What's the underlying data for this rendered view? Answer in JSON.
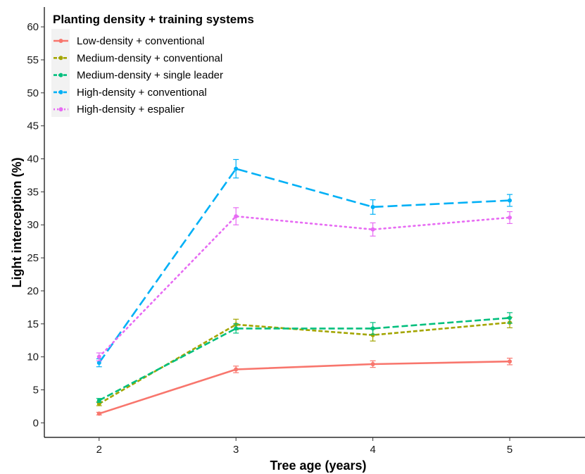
{
  "chart_data": {
    "type": "line",
    "xlabel": "Tree age (years)",
    "ylabel": "Light interception (%)",
    "x": [
      2,
      3,
      4,
      5
    ],
    "xlim": [
      1.6,
      5.55
    ],
    "ylim": [
      -2.2,
      63
    ],
    "yticks": [
      0,
      5,
      10,
      15,
      20,
      25,
      30,
      35,
      40,
      45,
      50,
      55,
      60
    ],
    "grid": false,
    "error_bars": true,
    "legend": {
      "title": "Planting density + training systems",
      "position": "top-left"
    },
    "series": [
      {
        "name": "Low-density + conventional",
        "color": "#F8766D",
        "dash": "solid",
        "values": [
          1.4,
          8.1,
          8.9,
          9.3
        ],
        "errors": [
          0.2,
          0.5,
          0.5,
          0.5
        ]
      },
      {
        "name": "Medium-density + conventional",
        "color": "#A3A500",
        "dash": "short-dash",
        "values": [
          2.9,
          14.9,
          13.3,
          15.2
        ],
        "errors": [
          0.3,
          0.8,
          0.9,
          0.8
        ]
      },
      {
        "name": "Medium-density + single leader",
        "color": "#00BF7D",
        "dash": "dash",
        "values": [
          3.4,
          14.3,
          14.3,
          15.9
        ],
        "errors": [
          0.3,
          0.7,
          0.9,
          0.8
        ]
      },
      {
        "name": "High-density + conventional",
        "color": "#00B0F6",
        "dash": "long-dash",
        "values": [
          9.1,
          38.5,
          32.7,
          33.7
        ],
        "errors": [
          0.6,
          1.4,
          1.1,
          0.9
        ]
      },
      {
        "name": "High-density + espalier",
        "color": "#E76BF3",
        "dash": "dotted",
        "values": [
          10.0,
          31.3,
          29.3,
          31.1
        ],
        "errors": [
          0.6,
          1.3,
          1.0,
          0.9
        ]
      }
    ]
  }
}
